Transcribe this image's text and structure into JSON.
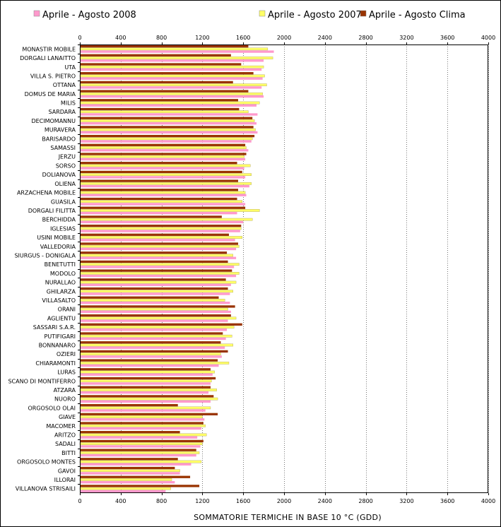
{
  "chart_data": {
    "type": "bar",
    "orientation": "horizontal",
    "xlabel": "SOMMATORIE TERMICHE IN BASE 10 °C (GDD)",
    "xlim": [
      0,
      4000
    ],
    "xticks": [
      "0",
      "400",
      "800",
      "1200",
      "1600",
      "2000",
      "2400",
      "2800",
      "3200",
      "3600",
      "4000"
    ],
    "grid": "vertical-dotted",
    "legend_position": "top",
    "categories": [
      "MONASTIR MOBILE",
      "DORGALI LANAITTO",
      "UTA",
      "VILLA S. PIETRO",
      "OTTANA",
      "DOMUS DE MARIA",
      "MILIS",
      "SARDARA",
      "DECIMOMANNU",
      "MURAVERA",
      "BARISARDO",
      "SAMASSI",
      "JERZU",
      "SORSO",
      "DOLIANOVA",
      "OLIENA",
      "ARZACHENA MOBILE",
      "GUASILA",
      "DORGALI FILITTA",
      "BERCHIDDA",
      "IGLESIAS",
      "USINI MOBILE",
      "VALLEDORIA",
      "SIURGUS - DONIGALA",
      "BENETUTTI",
      "MODOLO",
      "NURALLAO",
      "GHILARZA",
      "VILLASALTO",
      "ORANI",
      "AGLIENTU",
      "SASSARI S.A.R.",
      "PUTIFIGARI",
      "BONNANARO",
      "OZIERI",
      "CHIARAMONTI",
      "LURAS",
      "SCANO DI MONTIFERRO",
      "ATZARA",
      "NUORO",
      "ORGOSOLO OLAI",
      "GIAVE",
      "MACOMER",
      "ARITZO",
      "SADALI",
      "BITTI",
      "ORGOSOLO MONTES",
      "GAVOI",
      "ILLORAI",
      "VILLANOVA STRISAILI"
    ],
    "series": [
      {
        "name": "Aprile - Agosto 2008",
        "color": "#ff99cc",
        "values": [
          1900,
          1800,
          1780,
          1790,
          1780,
          1800,
          1730,
          1740,
          1730,
          1740,
          1680,
          1650,
          1620,
          1610,
          1620,
          1660,
          1630,
          1620,
          1540,
          1600,
          1570,
          1520,
          1530,
          1530,
          1510,
          1530,
          1480,
          1470,
          1470,
          1480,
          1450,
          1440,
          1430,
          1420,
          1390,
          1360,
          1300,
          1280,
          1260,
          1280,
          1230,
          1220,
          1190,
          1150,
          1180,
          1140,
          1090,
          980,
          930,
          840
        ]
      },
      {
        "name": "Aprile - Agosto 2007",
        "color": "#ffff66",
        "values": [
          1840,
          1890,
          1800,
          1810,
          1830,
          1790,
          1760,
          1650,
          1710,
          1720,
          1690,
          1630,
          1610,
          1670,
          1680,
          1680,
          1620,
          1590,
          1760,
          1690,
          1580,
          1590,
          1560,
          1500,
          1560,
          1560,
          1530,
          1500,
          1420,
          1450,
          1530,
          1510,
          1490,
          1500,
          1380,
          1460,
          1320,
          1290,
          1340,
          1350,
          1280,
          1200,
          1230,
          1240,
          1200,
          1170,
          1190,
          980,
          900,
          890
        ]
      },
      {
        "name": "Aprile - Agosto Clima",
        "color": "#993300",
        "values": [
          1650,
          1480,
          1580,
          1700,
          1500,
          1650,
          1550,
          1560,
          1690,
          1700,
          1710,
          1620,
          1630,
          1540,
          1590,
          1550,
          1550,
          1540,
          1620,
          1390,
          1580,
          1460,
          1550,
          1440,
          1450,
          1490,
          1430,
          1450,
          1360,
          1520,
          1480,
          1590,
          1400,
          1380,
          1450,
          1350,
          1280,
          1330,
          1280,
          1310,
          960,
          1350,
          1210,
          980,
          1210,
          1140,
          960,
          930,
          1080,
          1170
        ]
      }
    ]
  }
}
